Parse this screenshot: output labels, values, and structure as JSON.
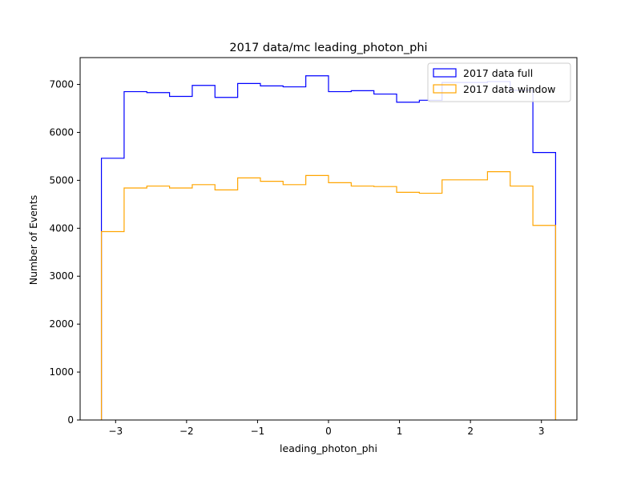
{
  "chart_data": {
    "type": "step-histogram",
    "title": "2017 data/mc leading_photon_phi",
    "xlabel": "leading_photon_phi",
    "ylabel": "Number of Events",
    "xlim": [
      -3.5,
      3.5
    ],
    "ylim": [
      0,
      7560
    ],
    "xticks": [
      -3,
      -2,
      -1,
      0,
      1,
      2,
      3
    ],
    "xtick_labels": [
      "−3",
      "−2",
      "−1",
      "0",
      "1",
      "2",
      "3"
    ],
    "yticks": [
      0,
      1000,
      2000,
      3000,
      4000,
      5000,
      6000,
      7000
    ],
    "ytick_labels": [
      "0",
      "1000",
      "2000",
      "3000",
      "4000",
      "5000",
      "6000",
      "7000"
    ],
    "bin_edges": [
      -3.2,
      -2.88,
      -2.56,
      -2.24,
      -1.92,
      -1.6,
      -1.28,
      -0.96,
      -0.64,
      -0.32,
      0.0,
      0.32,
      0.64,
      0.96,
      1.28,
      1.6,
      1.92,
      2.24,
      2.56,
      2.88,
      3.2
    ],
    "legend_position": "top-right",
    "series": [
      {
        "name": "2017 data full",
        "color": "#0000ff",
        "values": [
          5460,
          6850,
          6830,
          6750,
          6980,
          6730,
          7020,
          6970,
          6950,
          7180,
          6850,
          6870,
          6800,
          6630,
          6670,
          7040,
          7040,
          7060,
          6880,
          5580
        ]
      },
      {
        "name": "2017 data window",
        "color": "#ffa500",
        "values": [
          3930,
          4840,
          4880,
          4840,
          4910,
          4800,
          5050,
          4980,
          4910,
          5100,
          4950,
          4880,
          4870,
          4750,
          4730,
          5010,
          5010,
          5180,
          4880,
          4060
        ]
      }
    ]
  }
}
